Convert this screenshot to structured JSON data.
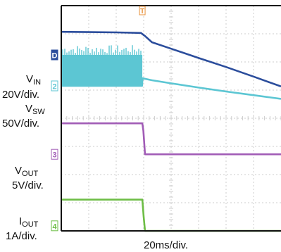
{
  "labels": {
    "vin_main": "V",
    "vin_sub": "IN",
    "vin_scale": "20V/div.",
    "vsw_main": "V",
    "vsw_sub": "SW",
    "vsw_scale": "50V/div.",
    "vout_main": "V",
    "vout_sub": "OUT",
    "vout_scale": "5V/div.",
    "iout_main": "I",
    "iout_sub": "OUT",
    "iout_scale": "1A/div.",
    "time_scale": "20ms/div."
  },
  "colors": {
    "vin": "#2b4d9c",
    "vsw": "#5cc6d3",
    "vout": "#a15cb6",
    "iout": "#6dbd45",
    "grid": "#cccccc",
    "frame": "#111111",
    "trigger": "#e8913a"
  },
  "channel_markers": [
    "D",
    "2",
    "3",
    "4"
  ],
  "trigger_marker": "T",
  "chart_data": {
    "type": "line",
    "title": "",
    "xlabel": "20ms/div.",
    "grid": true,
    "x_divisions": 8,
    "y_divisions": 8,
    "xlim_div": [
      0,
      8
    ],
    "ylim_div": [
      0,
      8
    ],
    "trigger_x_div": 2.95,
    "series": [
      {
        "name": "VIN",
        "scale": "20V/div.",
        "x_div": [
          0,
          1.0,
          2.0,
          2.9,
          3.05,
          3.3,
          4.0,
          5.0,
          6.0,
          7.0,
          8.0
        ],
        "y_div": [
          7.07,
          7.06,
          7.05,
          7.03,
          6.92,
          6.7,
          6.47,
          6.14,
          5.82,
          5.48,
          5.13
        ]
      },
      {
        "name": "VSW",
        "scale": "50V/div.",
        "x_div": [
          0,
          2.0,
          2.94,
          2.96,
          3.3,
          4.0,
          5.0,
          6.0,
          7.0,
          8.0
        ],
        "y_div": [
          5.15,
          5.15,
          5.15,
          5.42,
          5.35,
          5.24,
          5.09,
          4.95,
          4.82,
          4.69
        ],
        "switching_band_div": {
          "x_start": 0,
          "x_end": 2.95,
          "y_low": 5.15,
          "y_high": 6.5
        }
      },
      {
        "name": "VOUT",
        "scale": "5V/div.",
        "x_div": [
          0,
          1.0,
          2.0,
          2.95,
          2.99,
          3.05,
          4.0,
          5.0,
          6.0,
          7.0,
          8.0
        ],
        "y_div": [
          3.82,
          3.82,
          3.82,
          3.82,
          3.55,
          2.72,
          2.72,
          2.72,
          2.72,
          2.72,
          2.72
        ]
      },
      {
        "name": "IOUT",
        "scale": "1A/div.",
        "x_div": [
          0,
          1.0,
          2.0,
          2.95,
          3.0,
          3.05,
          4.0,
          5.0,
          6.0,
          7.0,
          8.0
        ],
        "y_div": [
          1.11,
          1.11,
          1.11,
          1.11,
          0.5,
          0.0,
          0.0,
          0.0,
          0.0,
          0.0,
          0.0
        ]
      }
    ]
  }
}
